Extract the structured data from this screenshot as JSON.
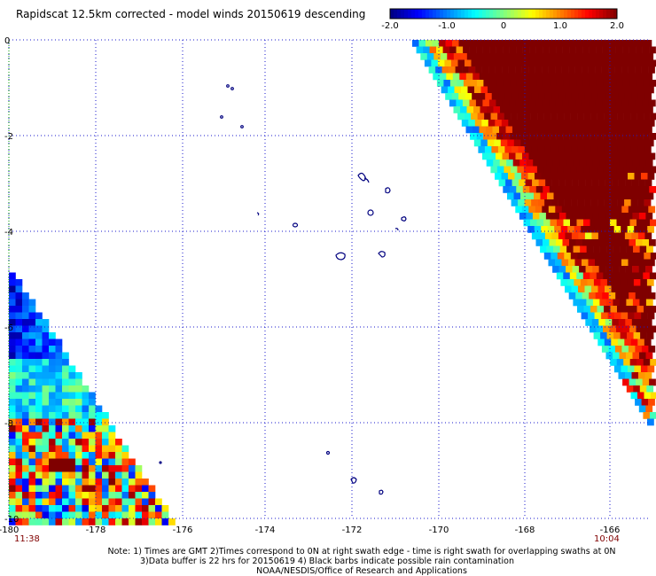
{
  "header": {
    "title": "Rapidscat 12.5km corrected - model winds 20150619 descending"
  },
  "colorbar": {
    "tick_labels": [
      "-2.0",
      "-1.0",
      "0",
      "1.0",
      "2.0"
    ],
    "range": [
      -2.0,
      2.0
    ],
    "colors": [
      "#00007f",
      "#0000ff",
      "#0080ff",
      "#00ffff",
      "#80ff80",
      "#ffff00",
      "#ff8000",
      "#ff0000",
      "#7f0000"
    ]
  },
  "map": {
    "lon_ticks": [
      "-180",
      "-178",
      "-176",
      "-174",
      "-172",
      "-170",
      "-168",
      "-166"
    ],
    "lat_ticks": [
      "0",
      "-2",
      "-4",
      "-6",
      "-8",
      "-10"
    ],
    "lon_range": [
      -180,
      -166
    ],
    "lat_range": [
      0,
      -10
    ],
    "grid_color": "#0000cc",
    "coast_color": "#00007f"
  },
  "swath_times": {
    "left": "11:38",
    "right": "10:04",
    "color": "#800000"
  },
  "footer": {
    "line1": "Note: 1) Times are GMT 2)Times correspond to 0N at right swath edge - time is right swath for overlapping swaths at 0N",
    "line2": "3)Data buffer is 22 hrs for 20150619 4) Black barbs indicate possible rain contamination",
    "line3": "NOAA/NESDIS/Office of Research and Applications"
  }
}
